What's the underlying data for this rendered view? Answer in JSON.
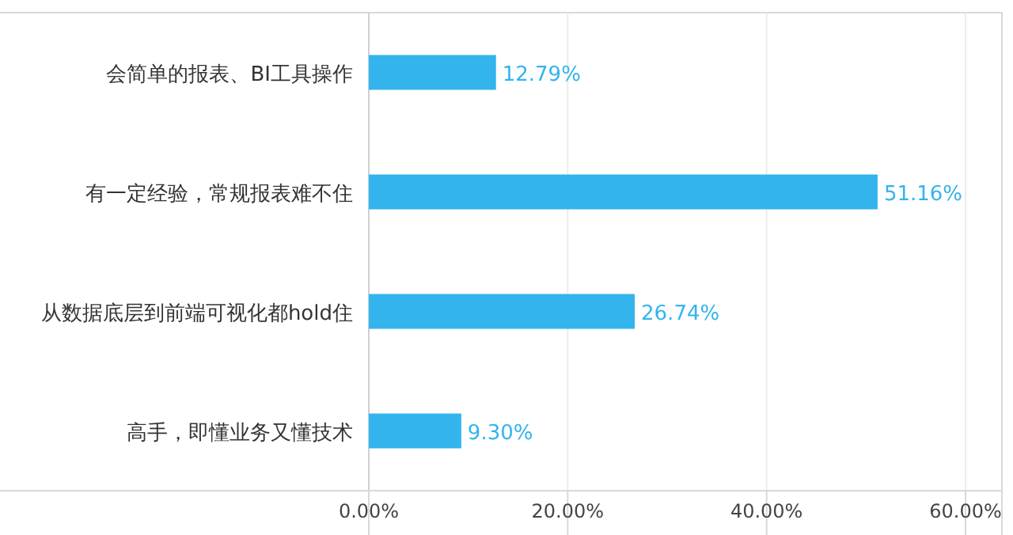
{
  "chart_data": {
    "type": "bar",
    "orientation": "horizontal",
    "categories": [
      "会简单的报表、BI工具操作",
      "有一定经验，常规报表难不住",
      "从数据底层到前端可视化都hold住",
      "高手，即懂业务又懂技术"
    ],
    "values": [
      12.79,
      51.16,
      26.74,
      9.3
    ],
    "value_labels": [
      "12.79%",
      "51.16%",
      "26.74%",
      "9.30%"
    ],
    "color": "#33b4ec",
    "xlim": [
      0,
      60
    ],
    "xticks": [
      {
        "value": 0,
        "label": "0.00%"
      },
      {
        "value": 20,
        "label": "20.00%"
      },
      {
        "value": 40,
        "label": "40.00%"
      },
      {
        "value": 60,
        "label": "60.00%"
      }
    ],
    "grid": "x"
  }
}
